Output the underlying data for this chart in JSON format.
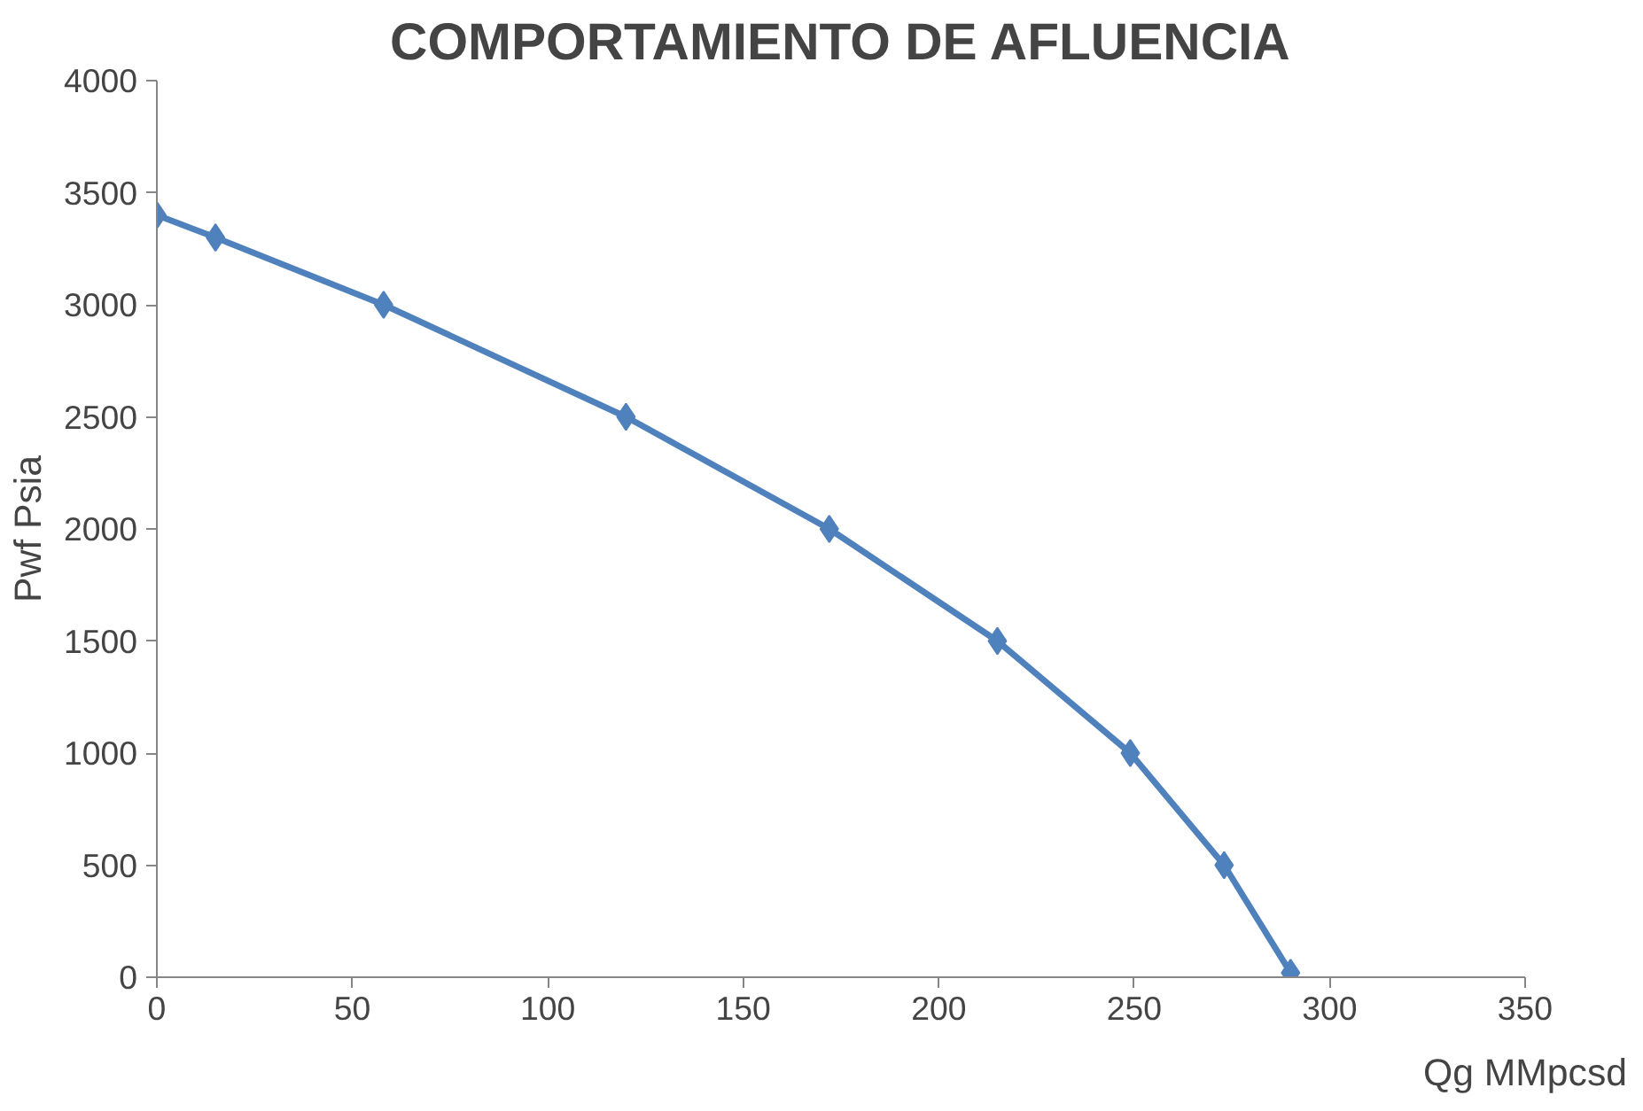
{
  "chart_data": {
    "type": "line",
    "title": "COMPORTAMIENTO DE AFLUENCIA",
    "xlabel": "Qg MMpcsd",
    "ylabel": "Pwf Psia",
    "x": [
      0,
      15,
      58,
      120,
      172,
      215,
      249,
      273,
      290
    ],
    "series": [
      {
        "color": "#4f81bd",
        "values": [
          3400,
          3300,
          3000,
          2500,
          2000,
          1500,
          1000,
          500,
          20
        ]
      }
    ],
    "xlim": [
      0,
      350
    ],
    "xticks": [
      0,
      50,
      100,
      150,
      200,
      250,
      300,
      350
    ],
    "ylim": [
      0,
      4000
    ],
    "yticks": [
      0,
      500,
      1000,
      1500,
      2000,
      2500,
      3000,
      3500,
      4000
    ],
    "grid": false,
    "marker": "diamond",
    "line_style": "solid"
  }
}
